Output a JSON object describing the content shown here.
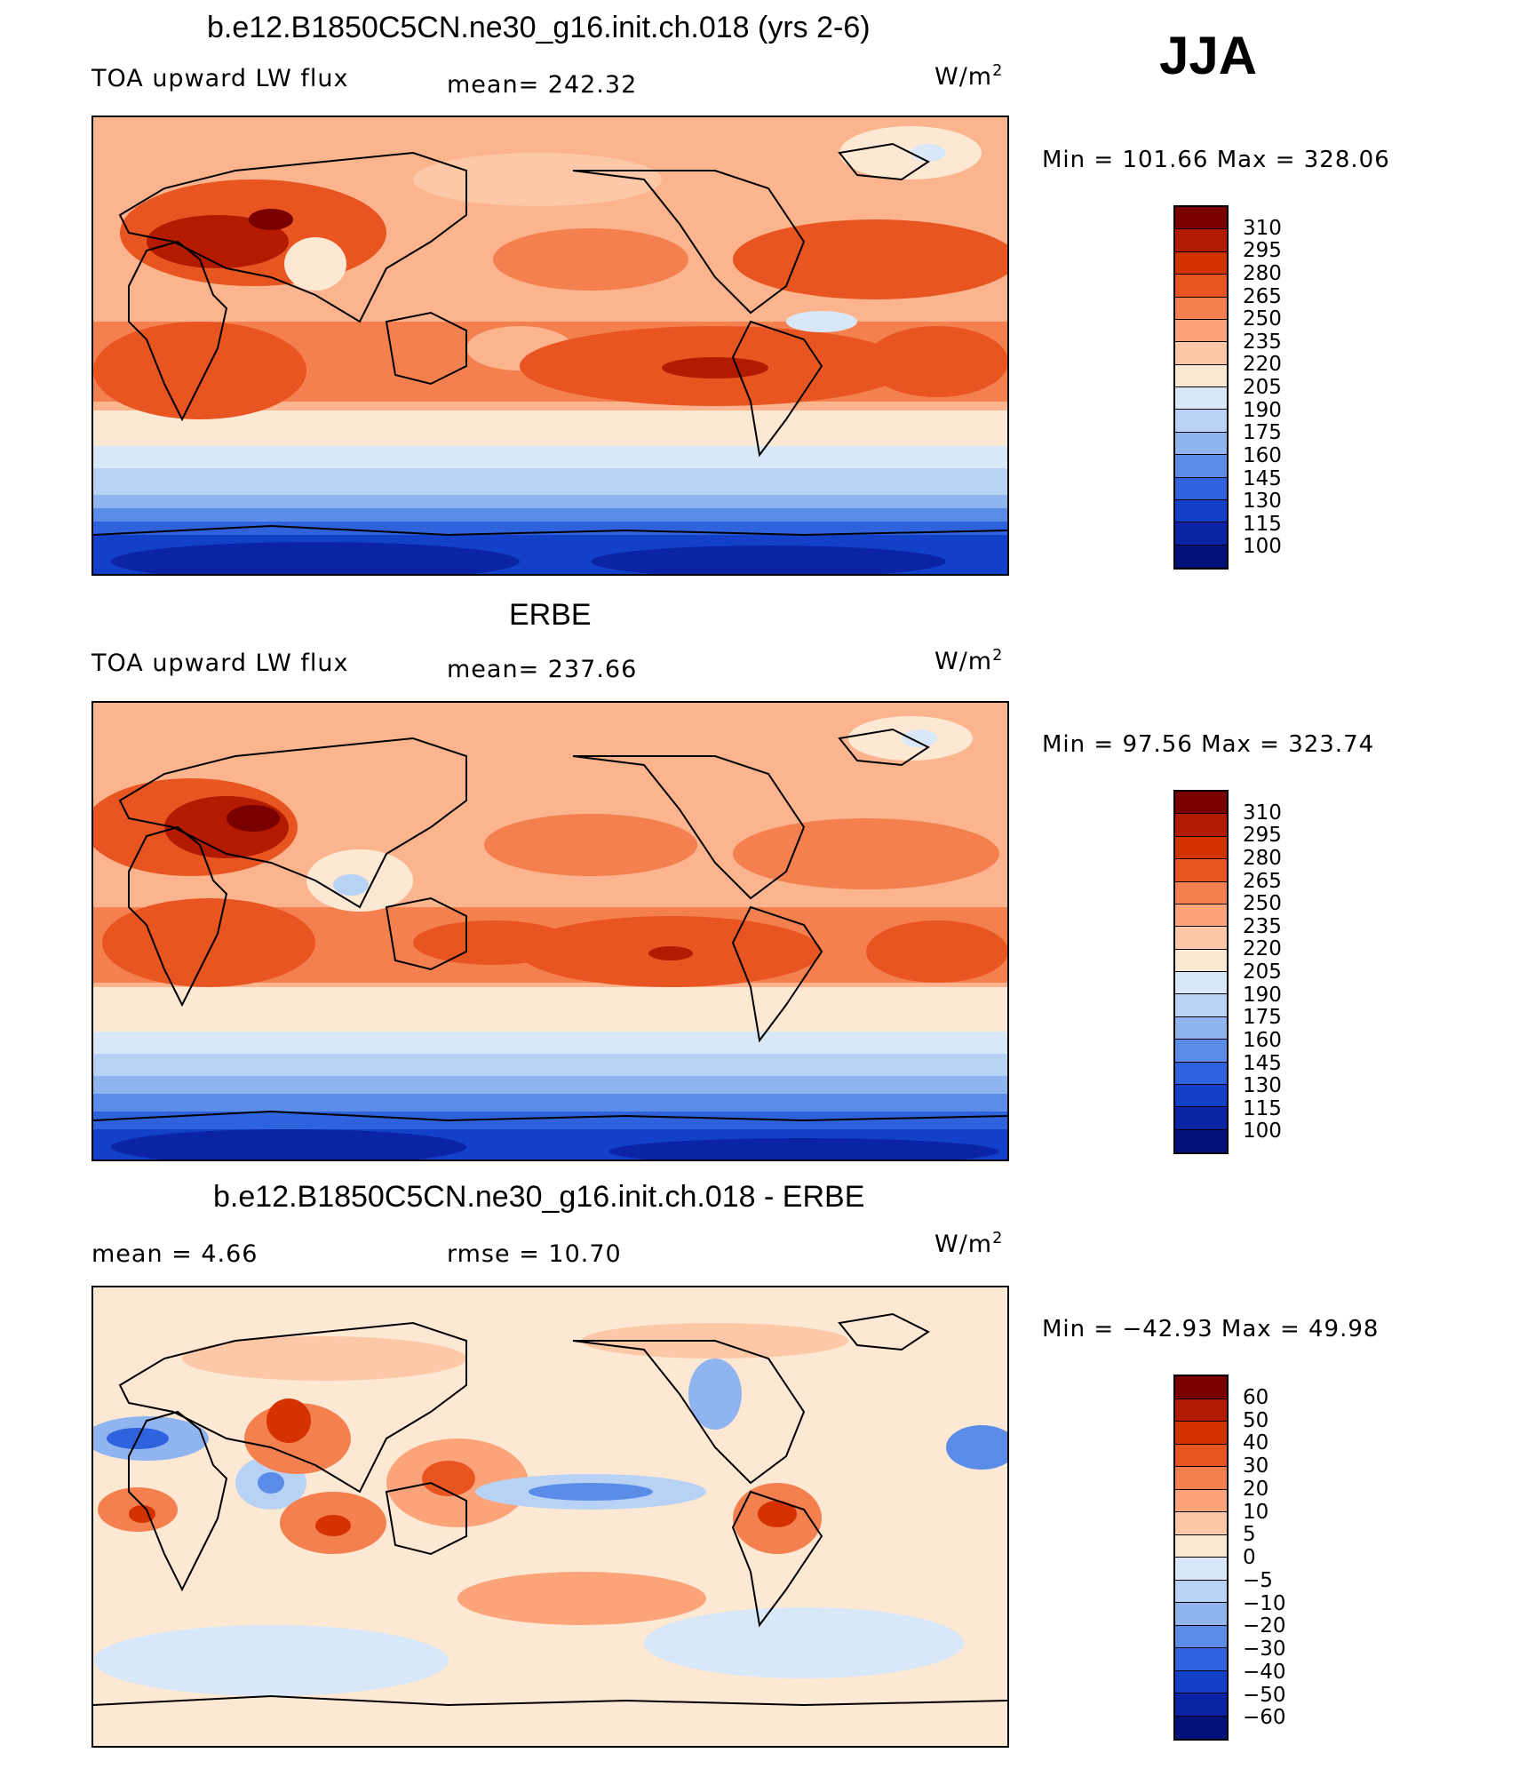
{
  "season": "JJA",
  "panels": [
    {
      "title": "b.e12.B1850C5CN.ne30_g16.init.ch.018 (yrs 2-6)",
      "left_label": "TOA upward LW flux",
      "center_label": "mean= 242.32",
      "units": "W/m",
      "units_sup": "2",
      "min": "101.66",
      "max": "328.06",
      "minmax_text": "Min  =  101.66  Max  =  328.06",
      "colorbar_labels": [
        "310",
        "295",
        "280",
        "265",
        "250",
        "235",
        "220",
        "205",
        "190",
        "175",
        "160",
        "145",
        "130",
        "115",
        "100"
      ],
      "colorbar_colors": [
        "#7a0000",
        "#b31a00",
        "#d43300",
        "#e85520",
        "#f5804f",
        "#fba47a",
        "#fdc8a8",
        "#fde8d4",
        "#d8e8f8",
        "#b8d2f6",
        "#90b4f0",
        "#5a8ce8",
        "#2f62dd",
        "#1340c8",
        "#0a24a5",
        "#00127a"
      ]
    },
    {
      "title": "ERBE",
      "left_label": "TOA upward LW flux",
      "center_label": "mean= 237.66",
      "units": "W/m",
      "units_sup": "2",
      "min": "97.56",
      "max": "323.74",
      "minmax_text": "Min  =   97.56  Max  =  323.74",
      "colorbar_labels": [
        "310",
        "295",
        "280",
        "265",
        "250",
        "235",
        "220",
        "205",
        "190",
        "175",
        "160",
        "145",
        "130",
        "115",
        "100"
      ],
      "colorbar_colors": [
        "#7a0000",
        "#b31a00",
        "#d43300",
        "#e85520",
        "#f5804f",
        "#fba47a",
        "#fdc8a8",
        "#fde8d4",
        "#d8e8f8",
        "#b8d2f6",
        "#90b4f0",
        "#5a8ce8",
        "#2f62dd",
        "#1340c8",
        "#0a24a5",
        "#00127a"
      ]
    },
    {
      "title": "b.e12.B1850C5CN.ne30_g16.init.ch.018 - ERBE",
      "left_label": "mean =     4.66",
      "center_label": "rmse =    10.70",
      "units": "W/m",
      "units_sup": "2",
      "min": "−42.93",
      "max": "49.98",
      "minmax_text": "Min  =  −42.93  Max  =    49.98",
      "colorbar_labels": [
        "60",
        "50",
        "40",
        "30",
        "20",
        "10",
        "5",
        "0",
        "−5",
        "−10",
        "−20",
        "−30",
        "−40",
        "−50",
        "−60"
      ],
      "colorbar_colors": [
        "#7a0000",
        "#b31a00",
        "#d43300",
        "#e85520",
        "#f5804f",
        "#fba47a",
        "#fdc8a8",
        "#fde8d4",
        "#d8e8f8",
        "#b8d2f6",
        "#90b4f0",
        "#5a8ce8",
        "#2f62dd",
        "#1340c8",
        "#0a24a5",
        "#00127a"
      ]
    }
  ]
}
